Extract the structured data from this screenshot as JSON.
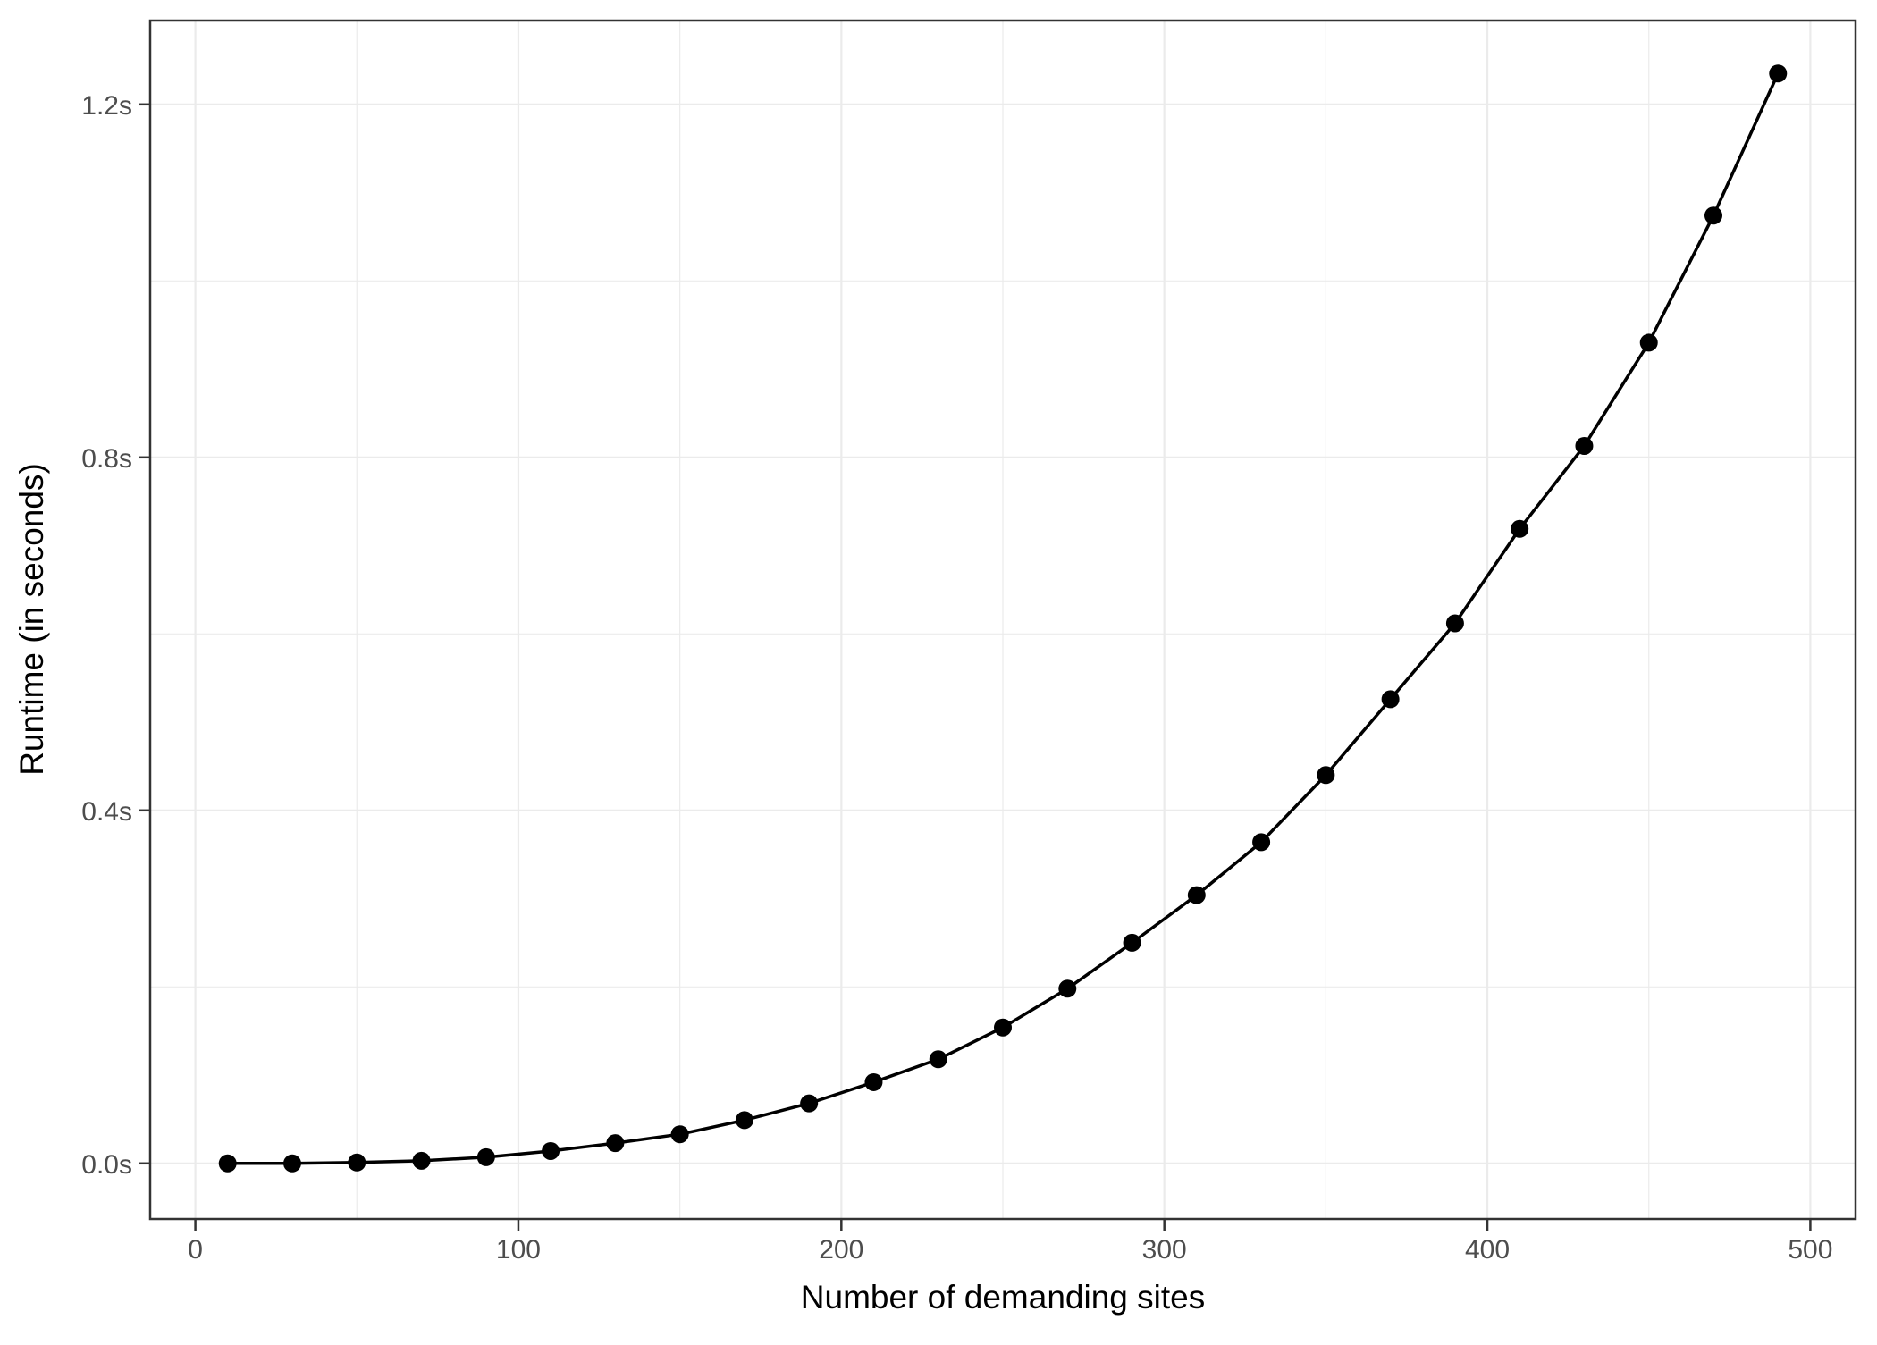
{
  "chart_data": {
    "type": "line",
    "title": "",
    "xlabel": "Number of demanding sites",
    "ylabel": "Runtime (in seconds)",
    "legend": "none",
    "grid": "major and minor gridlines, light gray on white panel, dark panel border",
    "series": [
      {
        "name": "runtime",
        "x": [
          10,
          30,
          50,
          70,
          90,
          110,
          130,
          150,
          170,
          190,
          210,
          230,
          250,
          270,
          290,
          310,
          330,
          350,
          370,
          390,
          410,
          430,
          450,
          470,
          490
        ],
        "y": [
          0.0,
          0.0,
          0.001,
          0.003,
          0.007,
          0.014,
          0.023,
          0.033,
          0.049,
          0.068,
          0.092,
          0.118,
          0.154,
          0.198,
          0.25,
          0.304,
          0.364,
          0.44,
          0.526,
          0.612,
          0.719,
          0.813,
          0.93,
          1.074,
          1.235
        ]
      }
    ],
    "x_ticks": {
      "values": [
        0,
        100,
        200,
        300,
        400,
        500
      ],
      "labels": [
        "0",
        "100",
        "200",
        "300",
        "400",
        "500"
      ]
    },
    "y_ticks": {
      "values": [
        0.0,
        0.4,
        0.8,
        1.2
      ],
      "labels": [
        "0.0s",
        "0.4s",
        "0.8s",
        "1.2s"
      ]
    },
    "x_minor_ticks": [
      50,
      150,
      250,
      350,
      450
    ],
    "y_minor_ticks": [
      0.2,
      0.6,
      1.0
    ],
    "xlim": [
      -14,
      514
    ],
    "ylim": [
      -0.063,
      1.295
    ],
    "style": {
      "line_color": "#000000",
      "point_color": "#000000",
      "grid_color": "#ebebeb",
      "panel_border_color": "#333333",
      "tick_color": "#333333",
      "tick_label_color": "#4d4d4d",
      "axis_title_color": "#000000",
      "background": "#ffffff"
    }
  }
}
